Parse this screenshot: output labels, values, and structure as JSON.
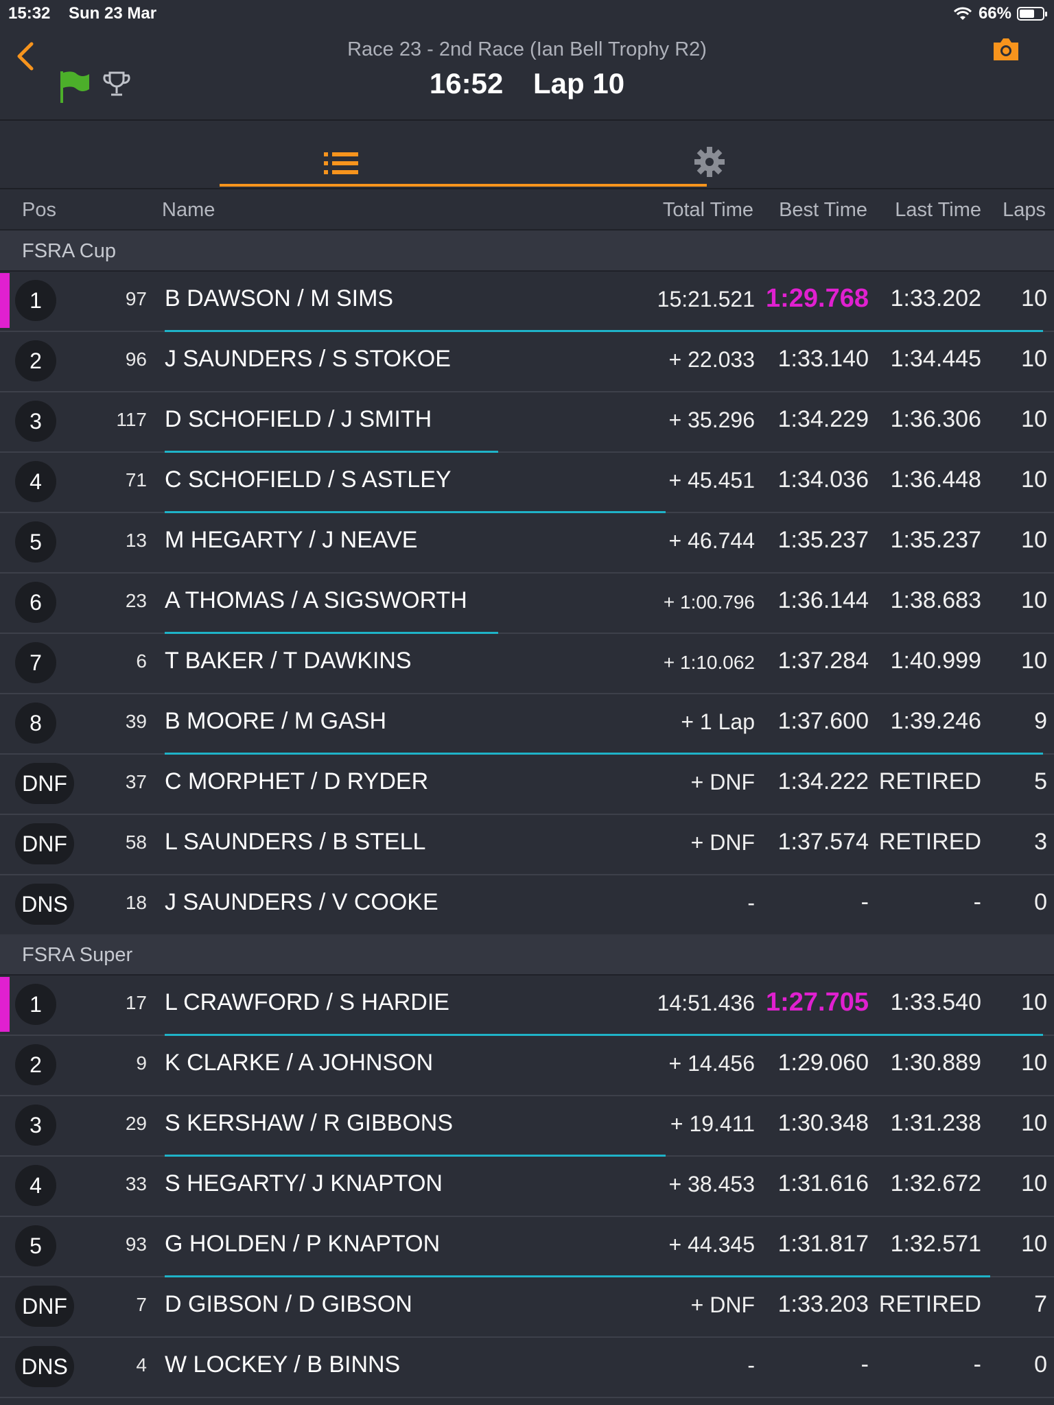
{
  "status_bar": {
    "time": "15:32",
    "date": "Sun 23 Mar",
    "battery": "66%",
    "battery_level": 0.66
  },
  "header": {
    "race_title": "Race 23 - 2nd Race (Ian Bell Trophy R2)",
    "clock": "16:52",
    "lap": "Lap 10"
  },
  "icons": {
    "back": "chevron-left-icon",
    "flag": "green-flag-icon",
    "trophy": "trophy-icon",
    "camera": "camera-icon",
    "list": "list-icon",
    "settings": "gear-icon"
  },
  "colors": {
    "accent": "#f7941d",
    "fastest": "#e020d0",
    "progress": "#1fb3c8",
    "flag_green": "#4caf2a"
  },
  "columns": {
    "pos": "Pos",
    "name": "Name",
    "total": "Total Time",
    "best": "Best Time",
    "last": "Last Time",
    "laps": "Laps"
  },
  "groups": [
    {
      "name": "FSRA Cup",
      "rows": [
        {
          "pos": "1",
          "num": "97",
          "name": "B DAWSON / M SIMS",
          "total": "15:21.521",
          "best": "1:29.768",
          "last": "1:33.202",
          "laps": "10",
          "fastest": true,
          "leader": true,
          "lap_progress": 1.0
        },
        {
          "pos": "2",
          "num": "96",
          "name": "J SAUNDERS / S STOKOE",
          "total": "+ 22.033",
          "best": "1:33.140",
          "last": "1:34.445",
          "laps": "10",
          "lap_progress": 0
        },
        {
          "pos": "3",
          "num": "117",
          "name": "D SCHOFIELD / J SMITH",
          "total": "+ 35.296",
          "best": "1:34.229",
          "last": "1:36.306",
          "laps": "10",
          "lap_progress": 0.38
        },
        {
          "pos": "4",
          "num": "71",
          "name": "C SCHOFIELD / S ASTLEY",
          "total": "+ 45.451",
          "best": "1:34.036",
          "last": "1:36.448",
          "laps": "10",
          "lap_progress": 0.57
        },
        {
          "pos": "5",
          "num": "13",
          "name": "M HEGARTY / J NEAVE",
          "total": "+ 46.744",
          "best": "1:35.237",
          "last": "1:35.237",
          "laps": "10",
          "lap_progress": 0
        },
        {
          "pos": "6",
          "num": "23",
          "name": "A THOMAS / A SIGSWORTH",
          "total": "+ 1:00.796",
          "best": "1:36.144",
          "last": "1:38.683",
          "laps": "10",
          "small_total": true,
          "lap_progress": 0.38
        },
        {
          "pos": "7",
          "num": "6",
          "name": "T BAKER / T DAWKINS",
          "total": "+ 1:10.062",
          "best": "1:37.284",
          "last": "1:40.999",
          "laps": "10",
          "small_total": true,
          "lap_progress": 0
        },
        {
          "pos": "8",
          "num": "39",
          "name": "B MOORE / M GASH",
          "total": "+ 1 Lap",
          "best": "1:37.600",
          "last": "1:39.246",
          "laps": "9",
          "lap_progress": 1.0
        },
        {
          "pos": "DNF",
          "num": "37",
          "name": "C MORPHET / D RYDER",
          "total": "+ DNF",
          "best": "1:34.222",
          "last": "RETIRED",
          "laps": "5",
          "lap_progress": 0
        },
        {
          "pos": "DNF",
          "num": "58",
          "name": "L SAUNDERS / B STELL",
          "total": "+ DNF",
          "best": "1:37.574",
          "last": "RETIRED",
          "laps": "3",
          "lap_progress": 0
        },
        {
          "pos": "DNS",
          "num": "18",
          "name": "J SAUNDERS / V COOKE",
          "total": "-",
          "best": "-",
          "last": "-",
          "laps": "0",
          "lap_progress": 0
        }
      ]
    },
    {
      "name": "FSRA Super",
      "rows": [
        {
          "pos": "1",
          "num": "17",
          "name": "L CRAWFORD / S HARDIE",
          "total": "14:51.436",
          "best": "1:27.705",
          "last": "1:33.540",
          "laps": "10",
          "fastest": true,
          "leader": true,
          "lap_progress": 1.0
        },
        {
          "pos": "2",
          "num": "9",
          "name": "K CLARKE / A JOHNSON",
          "total": "+ 14.456",
          "best": "1:29.060",
          "last": "1:30.889",
          "laps": "10",
          "lap_progress": 0
        },
        {
          "pos": "3",
          "num": "29",
          "name": "S KERSHAW / R GIBBONS",
          "total": "+ 19.411",
          "best": "1:30.348",
          "last": "1:31.238",
          "laps": "10",
          "lap_progress": 0.57
        },
        {
          "pos": "4",
          "num": "33",
          "name": "S HEGARTY/ J KNAPTON",
          "total": "+ 38.453",
          "best": "1:31.616",
          "last": "1:32.672",
          "laps": "10",
          "lap_progress": 0
        },
        {
          "pos": "5",
          "num": "93",
          "name": "G HOLDEN / P KNAPTON",
          "total": "+ 44.345",
          "best": "1:31.817",
          "last": "1:32.571",
          "laps": "10",
          "lap_progress": 0.94
        },
        {
          "pos": "DNF",
          "num": "7",
          "name": "D GIBSON / D GIBSON",
          "total": "+ DNF",
          "best": "1:33.203",
          "last": "RETIRED",
          "laps": "7",
          "lap_progress": 0
        },
        {
          "pos": "DNS",
          "num": "4",
          "name": "W LOCKEY / B BINNS",
          "total": "-",
          "best": "-",
          "last": "-",
          "laps": "0",
          "lap_progress": 0
        }
      ]
    }
  ]
}
